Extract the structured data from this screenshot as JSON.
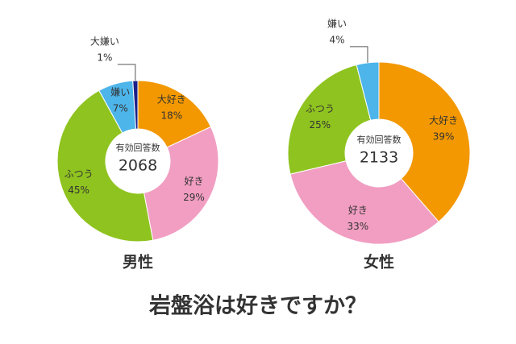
{
  "title": "岩盤浴は好きですか？",
  "chart_data": [
    {
      "type": "pie",
      "label": "男性",
      "label_color": "#1d2088",
      "center_label": "有効回答数",
      "total": 2068,
      "categories": [
        "大好き",
        "好き",
        "ふつう",
        "嫌い",
        "大嫌い"
      ],
      "values": [
        18,
        29,
        45,
        7,
        1
      ],
      "value_labels": [
        "18%",
        "29%",
        "45%",
        "7%",
        "1%"
      ],
      "colors": [
        "#f39800",
        "#f19ec2",
        "#8fc31f",
        "#4db5ea",
        "#1d2088"
      ]
    },
    {
      "type": "pie",
      "label": "女性",
      "label_color": "#e4007f",
      "center_label": "有効回答数",
      "total": 2133,
      "categories": [
        "大好き",
        "好き",
        "ふつう",
        "嫌い"
      ],
      "values": [
        39,
        33,
        25,
        4
      ],
      "value_labels": [
        "39%",
        "33%",
        "25%",
        "4%"
      ],
      "colors": [
        "#f39800",
        "#f19ec2",
        "#8fc31f",
        "#4db5ea"
      ]
    }
  ]
}
